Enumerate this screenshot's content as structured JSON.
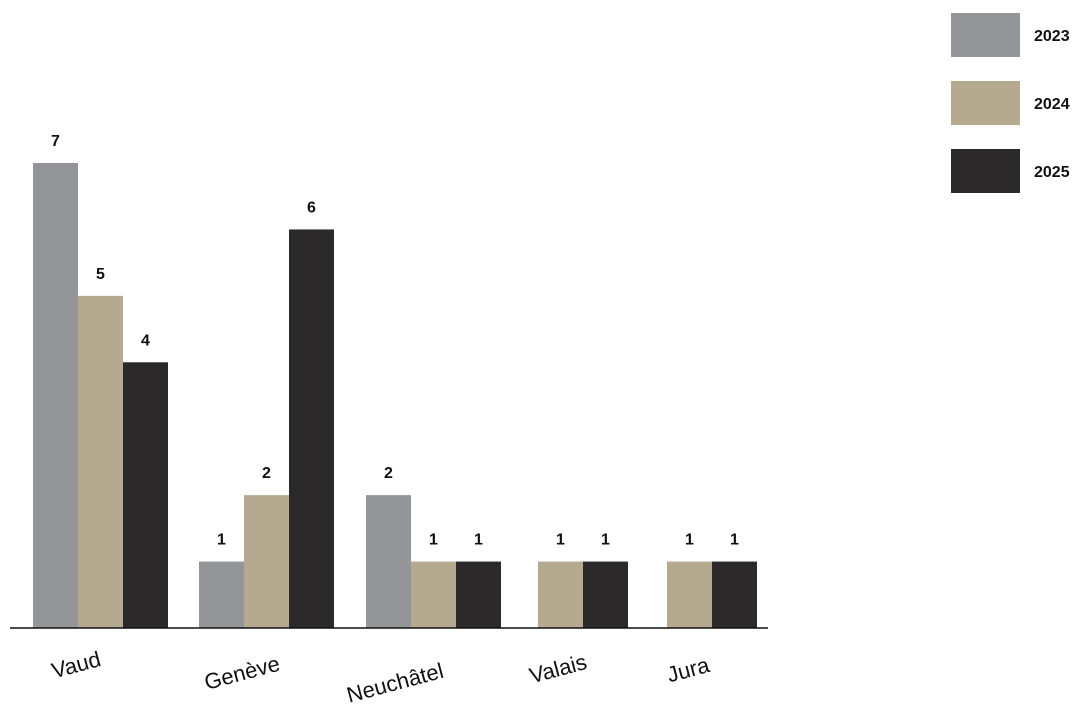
{
  "chart_data": {
    "type": "bar",
    "title": "",
    "xlabel": "",
    "ylabel": "",
    "ylim": [
      0,
      7
    ],
    "grid": false,
    "legend_position": "top-right",
    "categories": [
      "Vaud",
      "Genève",
      "Neuchâtel",
      "Valais",
      "Jura"
    ],
    "series": [
      {
        "name": "2023",
        "color": "#939598",
        "values": [
          7,
          1,
          2,
          null,
          null
        ]
      },
      {
        "name": "2024",
        "color": "#b5aa8f",
        "values": [
          5,
          2,
          1,
          1,
          1
        ]
      },
      {
        "name": "2025",
        "color": "#2b292a",
        "values": [
          4,
          6,
          1,
          1,
          1
        ]
      }
    ]
  }
}
